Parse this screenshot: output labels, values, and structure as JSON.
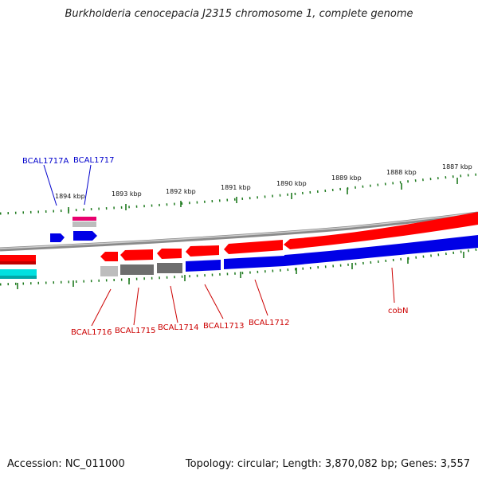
{
  "title": "Burkholderia cenocepacia J2315 chromosome 1, complete genome",
  "footer": {
    "accession": "Accession: NC_011000",
    "summary": "Topology: circular; Length: 3,870,082 bp; Genes: 3,557"
  },
  "colors": {
    "backbone": "#8a8a8a",
    "forward_cds": "#ff0000",
    "reverse_cds": "#0000e6",
    "pseudo_gray": "#6e6e6e",
    "light_gray": "#bdbdbd",
    "magenta": "#e8006e",
    "cyan": "#00e0e0",
    "tick": "#1e7a1e",
    "label_red": "#cc0000",
    "label_blue": "#0000cc"
  },
  "scale_labels": [
    "1894 kbp",
    "1893 kbp",
    "1892 kbp",
    "1891 kbp",
    "1890 kbp",
    "1889 kbp",
    "1888 kbp",
    "1887 kbp"
  ],
  "gene_labels": [
    {
      "text": "BCAL1717A",
      "color": "label_blue"
    },
    {
      "text": "BCAL1717",
      "color": "label_blue"
    },
    {
      "text": "BCAL1716",
      "color": "label_red"
    },
    {
      "text": "BCAL1715",
      "color": "label_red"
    },
    {
      "text": "BCAL1714",
      "color": "label_red"
    },
    {
      "text": "BCAL1713",
      "color": "label_red"
    },
    {
      "text": "BCAL1712",
      "color": "label_red"
    },
    {
      "text": "cobN",
      "color": "label_red"
    }
  ]
}
